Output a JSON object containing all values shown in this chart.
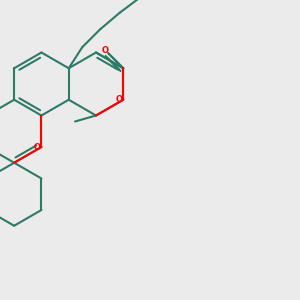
{
  "background_color": "#ebebeb",
  "bond_color": "#2d7a65",
  "oxygen_color": "#ff0000",
  "line_width": 1.5,
  "figsize": [
    3.0,
    3.0
  ],
  "dpi": 100,
  "xlim": [
    0,
    10
  ],
  "ylim": [
    0,
    10
  ]
}
